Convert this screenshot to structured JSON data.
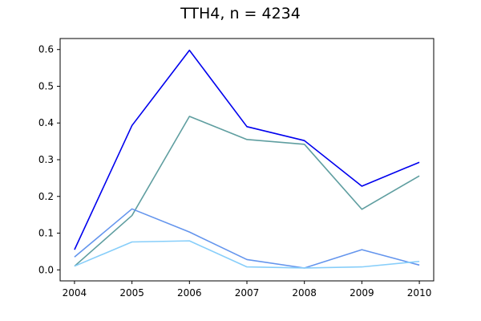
{
  "chart_data": {
    "type": "line",
    "title": "TTH4, n = 4234",
    "xlabel": "",
    "ylabel": "",
    "x": [
      2004,
      2005,
      2006,
      2007,
      2008,
      2009,
      2010
    ],
    "xlim": [
      2003.75,
      2010.25
    ],
    "ylim": [
      -0.03,
      0.63
    ],
    "x_ticks": [
      "2004",
      "2005",
      "2006",
      "2007",
      "2008",
      "2009",
      "2010"
    ],
    "y_ticks": [
      "0.0",
      "0.1",
      "0.2",
      "0.3",
      "0.4",
      "0.5",
      "0.6"
    ],
    "grid": false,
    "legend": "none",
    "series": [
      {
        "color": "#0000ee",
        "values": [
          0.055,
          0.393,
          0.598,
          0.39,
          0.352,
          0.228,
          0.293
        ]
      },
      {
        "color": "#5f9ea0",
        "values": [
          0.01,
          0.148,
          0.418,
          0.355,
          0.342,
          0.165,
          0.256
        ]
      },
      {
        "color": "#6495ed",
        "values": [
          0.035,
          0.166,
          0.103,
          0.028,
          0.005,
          0.055,
          0.013
        ]
      },
      {
        "color": "#87cefa",
        "values": [
          0.01,
          0.076,
          0.079,
          0.008,
          0.005,
          0.008,
          0.023
        ]
      }
    ]
  }
}
